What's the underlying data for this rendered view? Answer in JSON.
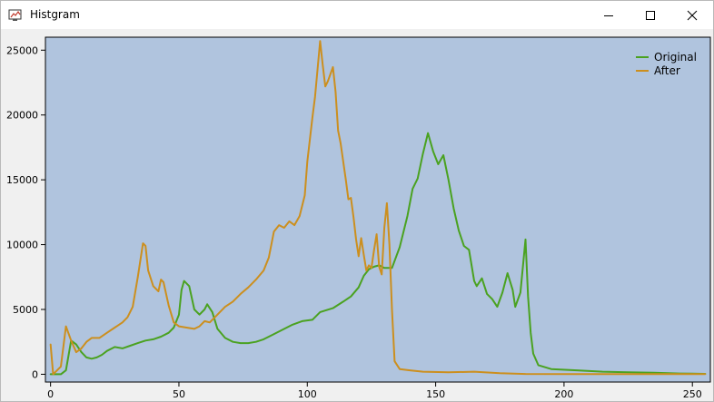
{
  "window": {
    "title": "Histgram",
    "buttons": {
      "minimize": "minimize",
      "maximize": "maximize",
      "close": "close"
    }
  },
  "chart_data": {
    "type": "line",
    "title": "",
    "xlabel": "",
    "ylabel": "",
    "xlim": [
      -2,
      257
    ],
    "ylim": [
      -600,
      26000
    ],
    "x_ticks": [
      0,
      50,
      100,
      150,
      200,
      250
    ],
    "y_ticks": [
      0,
      5000,
      10000,
      15000,
      20000,
      25000
    ],
    "grid": false,
    "legend": "top-right",
    "plot_background": "#b0c4de",
    "series": [
      {
        "name": "Original",
        "color": "#4aa220",
        "points": [
          [
            0,
            0
          ],
          [
            4,
            0
          ],
          [
            6,
            300
          ],
          [
            8,
            2600
          ],
          [
            10,
            2300
          ],
          [
            12,
            1700
          ],
          [
            14,
            1300
          ],
          [
            16,
            1200
          ],
          [
            18,
            1300
          ],
          [
            20,
            1500
          ],
          [
            22,
            1800
          ],
          [
            25,
            2100
          ],
          [
            28,
            2000
          ],
          [
            31,
            2200
          ],
          [
            34,
            2400
          ],
          [
            37,
            2600
          ],
          [
            40,
            2700
          ],
          [
            43,
            2900
          ],
          [
            46,
            3200
          ],
          [
            48,
            3600
          ],
          [
            50,
            4600
          ],
          [
            51,
            6500
          ],
          [
            52,
            7200
          ],
          [
            54,
            6800
          ],
          [
            56,
            5000
          ],
          [
            58,
            4600
          ],
          [
            60,
            5000
          ],
          [
            61,
            5400
          ],
          [
            63,
            4800
          ],
          [
            65,
            3500
          ],
          [
            68,
            2800
          ],
          [
            71,
            2500
          ],
          [
            74,
            2400
          ],
          [
            77,
            2400
          ],
          [
            80,
            2500
          ],
          [
            83,
            2700
          ],
          [
            86,
            3000
          ],
          [
            90,
            3400
          ],
          [
            94,
            3800
          ],
          [
            98,
            4100
          ],
          [
            102,
            4200
          ],
          [
            105,
            4800
          ],
          [
            110,
            5100
          ],
          [
            114,
            5600
          ],
          [
            117,
            6000
          ],
          [
            120,
            6700
          ],
          [
            122,
            7600
          ],
          [
            124,
            8100
          ],
          [
            126,
            8300
          ],
          [
            128,
            8400
          ],
          [
            130,
            8200
          ],
          [
            133,
            8200
          ],
          [
            136,
            9800
          ],
          [
            139,
            12200
          ],
          [
            141,
            14300
          ],
          [
            143,
            15100
          ],
          [
            145,
            17000
          ],
          [
            147,
            18600
          ],
          [
            149,
            17200
          ],
          [
            151,
            16200
          ],
          [
            153,
            16900
          ],
          [
            155,
            15000
          ],
          [
            157,
            12800
          ],
          [
            159,
            11100
          ],
          [
            161,
            9900
          ],
          [
            163,
            9600
          ],
          [
            165,
            7200
          ],
          [
            166,
            6800
          ],
          [
            168,
            7400
          ],
          [
            170,
            6200
          ],
          [
            172,
            5800
          ],
          [
            174,
            5200
          ],
          [
            176,
            6300
          ],
          [
            178,
            7800
          ],
          [
            180,
            6500
          ],
          [
            181,
            5200
          ],
          [
            183,
            6300
          ],
          [
            185,
            10400
          ],
          [
            186,
            6000
          ],
          [
            187,
            3200
          ],
          [
            188,
            1600
          ],
          [
            190,
            700
          ],
          [
            195,
            400
          ],
          [
            205,
            300
          ],
          [
            215,
            200
          ],
          [
            225,
            150
          ],
          [
            235,
            120
          ],
          [
            245,
            60
          ],
          [
            255,
            30
          ]
        ]
      },
      {
        "name": "After",
        "color": "#cc8f1e",
        "points": [
          [
            0,
            2300
          ],
          [
            1,
            0
          ],
          [
            4,
            600
          ],
          [
            6,
            3700
          ],
          [
            8,
            2600
          ],
          [
            10,
            1700
          ],
          [
            12,
            2000
          ],
          [
            14,
            2500
          ],
          [
            16,
            2800
          ],
          [
            19,
            2800
          ],
          [
            22,
            3200
          ],
          [
            25,
            3600
          ],
          [
            28,
            4000
          ],
          [
            30,
            4400
          ],
          [
            32,
            5200
          ],
          [
            34,
            7500
          ],
          [
            36,
            10100
          ],
          [
            37,
            9900
          ],
          [
            38,
            8000
          ],
          [
            40,
            6800
          ],
          [
            42,
            6400
          ],
          [
            43,
            7300
          ],
          [
            44,
            7100
          ],
          [
            46,
            5300
          ],
          [
            48,
            4000
          ],
          [
            50,
            3700
          ],
          [
            53,
            3600
          ],
          [
            56,
            3500
          ],
          [
            58,
            3700
          ],
          [
            60,
            4100
          ],
          [
            62,
            4000
          ],
          [
            65,
            4600
          ],
          [
            68,
            5200
          ],
          [
            71,
            5600
          ],
          [
            74,
            6200
          ],
          [
            77,
            6700
          ],
          [
            80,
            7300
          ],
          [
            83,
            8000
          ],
          [
            85,
            9000
          ],
          [
            87,
            11000
          ],
          [
            89,
            11500
          ],
          [
            91,
            11300
          ],
          [
            93,
            11800
          ],
          [
            95,
            11500
          ],
          [
            97,
            12200
          ],
          [
            99,
            13800
          ],
          [
            100,
            16400
          ],
          [
            102,
            19800
          ],
          [
            103,
            21400
          ],
          [
            105,
            25700
          ],
          [
            106,
            23900
          ],
          [
            107,
            22200
          ],
          [
            108,
            22600
          ],
          [
            110,
            23700
          ],
          [
            111,
            21800
          ],
          [
            112,
            18800
          ],
          [
            113,
            17800
          ],
          [
            115,
            15000
          ],
          [
            116,
            13500
          ],
          [
            117,
            13600
          ],
          [
            118,
            12100
          ],
          [
            119,
            10400
          ],
          [
            120,
            9100
          ],
          [
            121,
            10500
          ],
          [
            122,
            9200
          ],
          [
            123,
            8000
          ],
          [
            124,
            8400
          ],
          [
            125,
            8200
          ],
          [
            126,
            9600
          ],
          [
            127,
            10800
          ],
          [
            128,
            8300
          ],
          [
            129,
            7700
          ],
          [
            130,
            11300
          ],
          [
            131,
            13200
          ],
          [
            132,
            10000
          ],
          [
            133,
            5000
          ],
          [
            134,
            1000
          ],
          [
            136,
            400
          ],
          [
            140,
            300
          ],
          [
            145,
            200
          ],
          [
            155,
            150
          ],
          [
            165,
            200
          ],
          [
            175,
            80
          ],
          [
            185,
            20
          ],
          [
            210,
            10
          ],
          [
            255,
            10
          ]
        ]
      }
    ]
  }
}
